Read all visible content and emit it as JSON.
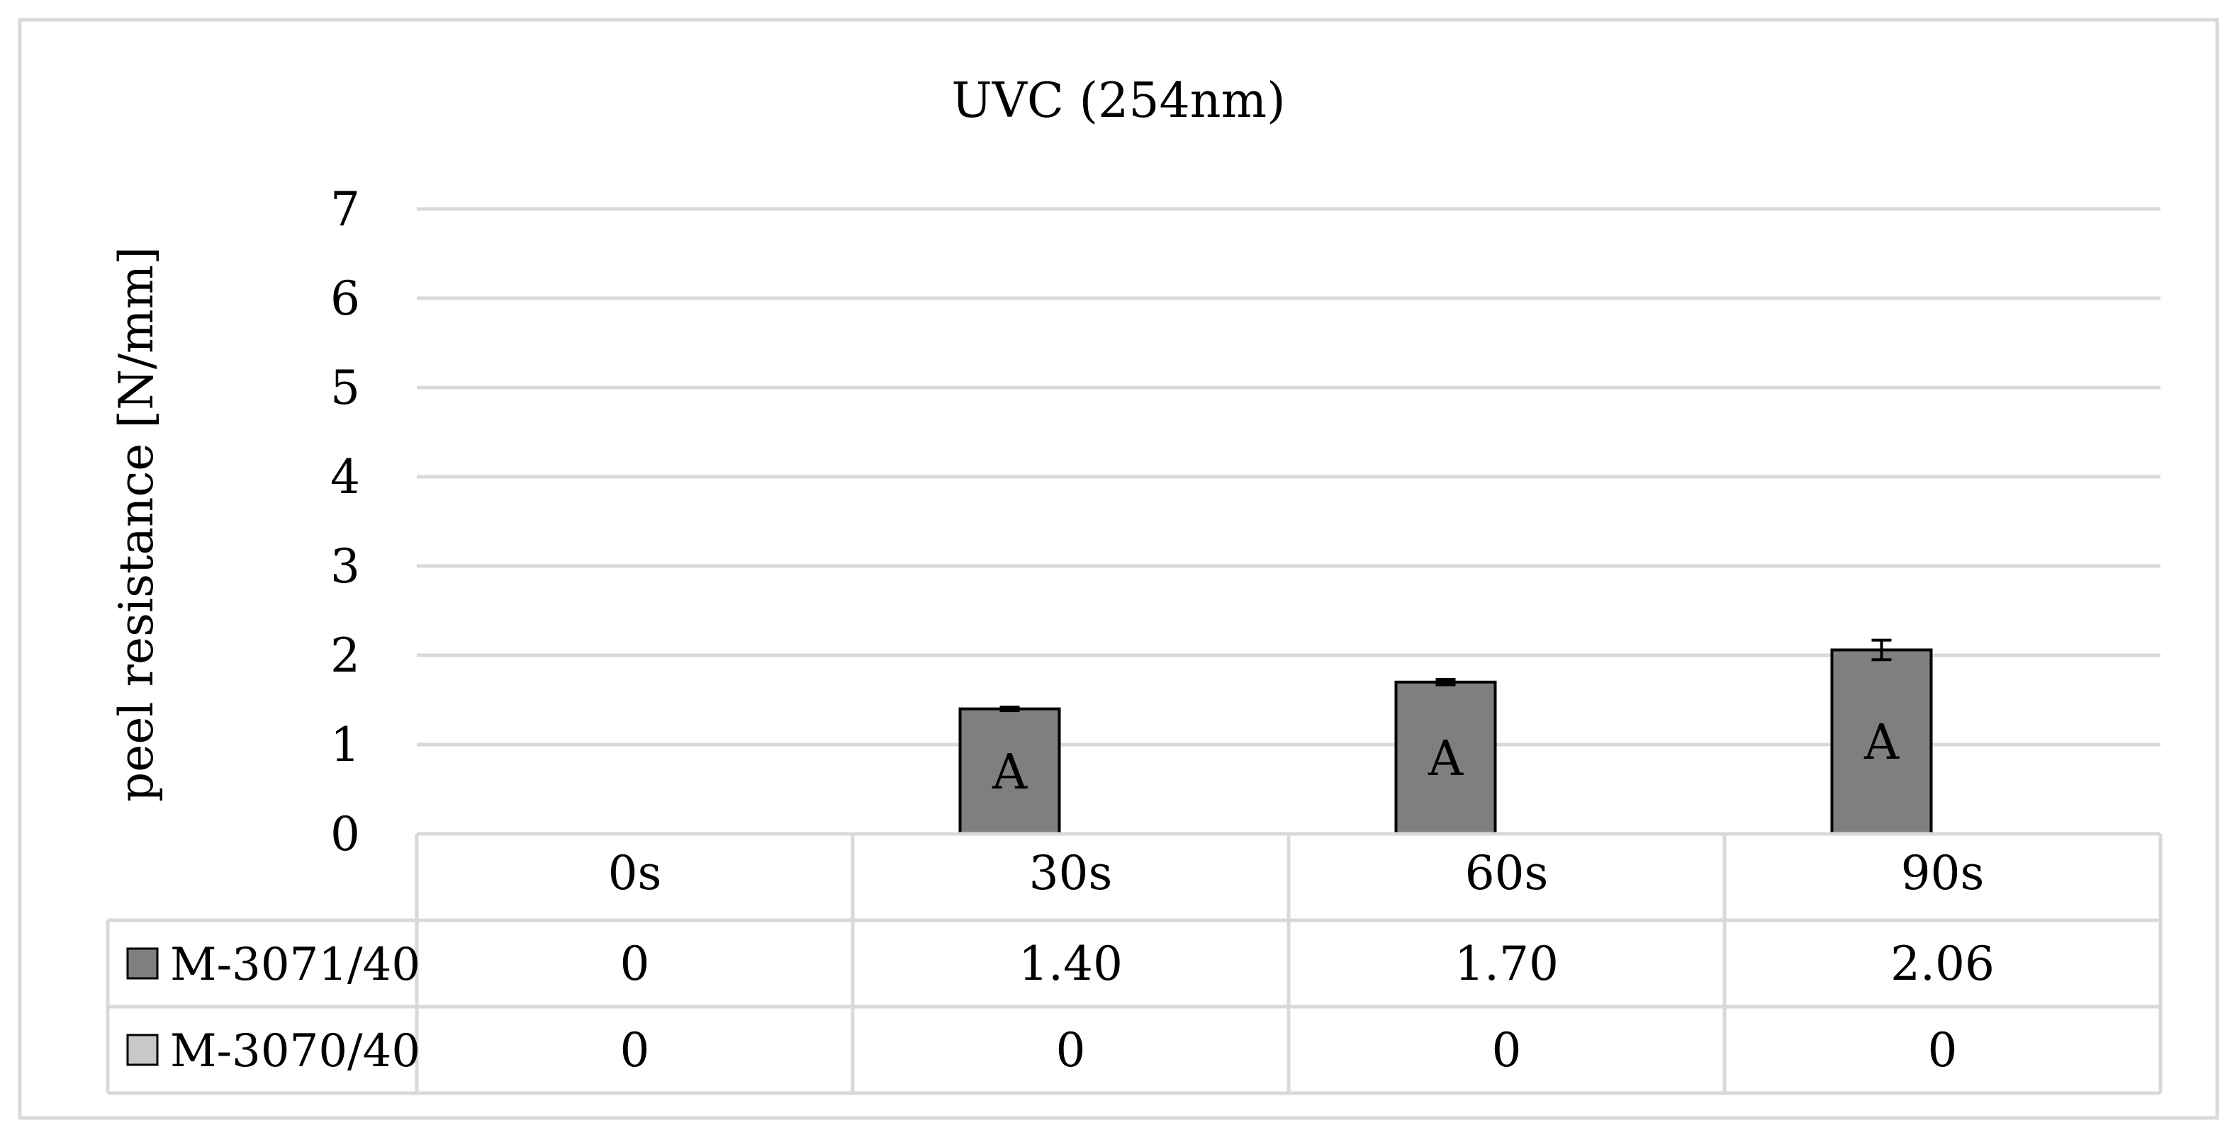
{
  "chart_data": {
    "type": "bar",
    "title": "UVC (254nm)",
    "ylabel": "peel resistance [N/mm]",
    "xlabel": "",
    "categories": [
      "0s",
      "30s",
      "60s",
      "90s"
    ],
    "ylim": [
      0,
      7
    ],
    "yticks": [
      0,
      1,
      2,
      3,
      4,
      5,
      6,
      7
    ],
    "grid": true,
    "legend": "data-table-below",
    "series": [
      {
        "name": "M-3071/40",
        "values": [
          0,
          1.4,
          1.7,
          2.06
        ],
        "table_values": [
          "0",
          "1.40",
          "1.70",
          "2.06"
        ],
        "error": [
          0,
          0.02,
          0.03,
          0.11
        ],
        "bar_labels": [
          "",
          "A",
          "A",
          "A"
        ],
        "color": "#7f7f7f"
      },
      {
        "name": "M-3070/40",
        "values": [
          0,
          0,
          0,
          0
        ],
        "table_values": [
          "0",
          "0",
          "0",
          "0"
        ],
        "error": [
          0,
          0,
          0,
          0
        ],
        "bar_labels": [
          "",
          "",
          "",
          ""
        ],
        "color": "#c8c8c8"
      }
    ],
    "colors": {
      "grid": "#d9d9d9",
      "border": "#d9d9d9",
      "bar_stroke": "#000000"
    }
  }
}
